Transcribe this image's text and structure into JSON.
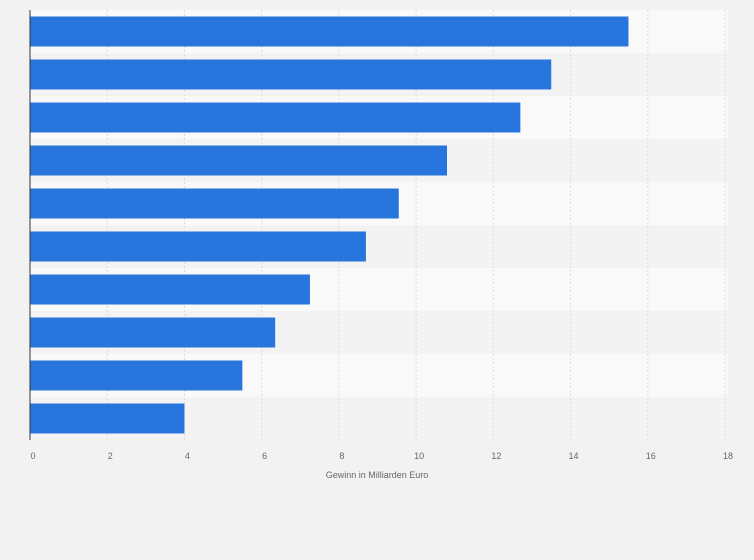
{
  "chart_data": {
    "type": "bar",
    "orientation": "horizontal",
    "title": "",
    "xlabel": "Gewinn in Milliarden Euro",
    "ylabel": "",
    "categories": [
      "",
      "",
      "",
      "",
      "",
      "",
      "",
      "",
      "",
      ""
    ],
    "values": [
      15.5,
      13.5,
      12.7,
      10.8,
      9.55,
      8.7,
      7.25,
      6.35,
      5.5,
      4.0
    ],
    "xlim": [
      0,
      18
    ],
    "xticks": [
      "0",
      "2",
      "4",
      "6",
      "8",
      "10",
      "12",
      "14",
      "16",
      "18"
    ],
    "grid": true,
    "bar_color": "#2876dd"
  }
}
